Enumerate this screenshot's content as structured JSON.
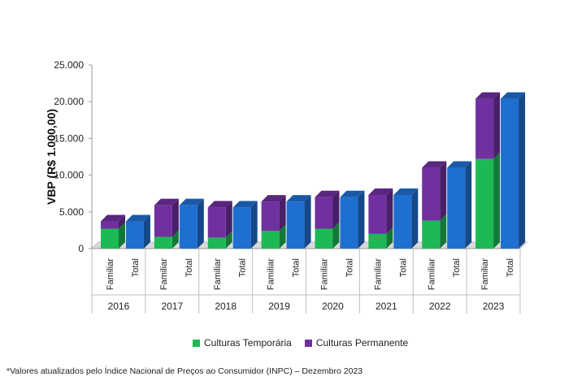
{
  "chart_data": {
    "type": "bar",
    "ylabel": "VBP (R$ 1.000,00)",
    "ylim": [
      0,
      25000
    ],
    "yticks": [
      "0",
      "5.000",
      "10.000",
      "15.000",
      "20.000",
      "25.000"
    ],
    "years": [
      "2016",
      "2017",
      "2018",
      "2019",
      "2020",
      "2021",
      "2022",
      "2023"
    ],
    "subcategories": [
      "Familiar",
      "Total"
    ],
    "series": [
      {
        "name": "Culturas Temporária",
        "color": "#1db954",
        "familiar": [
          2700,
          1600,
          1500,
          2400,
          2700,
          2000,
          3800,
          12200
        ]
      },
      {
        "name": "Culturas Permanente",
        "color": "#7030a0",
        "familiar": [
          1000,
          4300,
          4100,
          4000,
          4300,
          5300,
          7200,
          8200
        ]
      }
    ],
    "total": {
      "color": "#1f6fd1",
      "values": [
        3700,
        5900,
        5600,
        6400,
        7000,
        7300,
        11000,
        20400
      ]
    },
    "legend_position": "bottom",
    "grid": false
  },
  "footnote": "*Valores atualizados pelo Índice Nacional de Preços ao Consumidor (INPC) – Dezembro 2023"
}
